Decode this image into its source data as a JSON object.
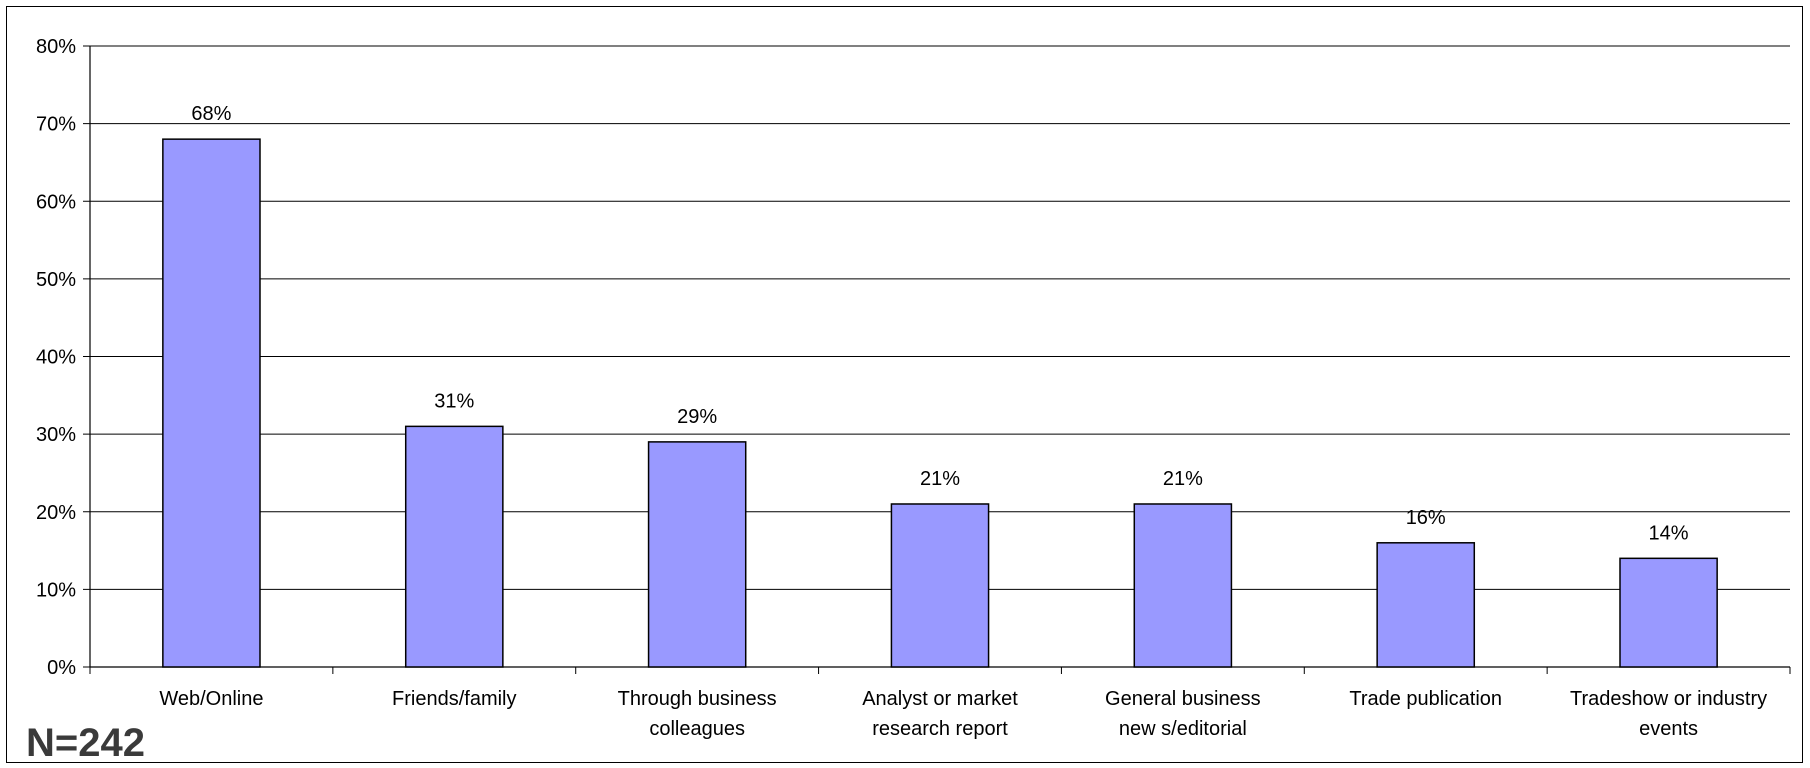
{
  "chart_data": {
    "type": "bar",
    "categories": [
      [
        "Web/Online"
      ],
      [
        "Friends/family"
      ],
      [
        "Through business",
        "colleagues"
      ],
      [
        "Analyst or market",
        "research report"
      ],
      [
        "General business",
        "new s/editorial"
      ],
      [
        "Trade publication"
      ],
      [
        "Tradeshow  or industry",
        "events"
      ]
    ],
    "values": [
      68,
      31,
      29,
      21,
      21,
      16,
      14
    ],
    "value_labels": [
      "68%",
      "31%",
      "29%",
      "21%",
      "21%",
      "16%",
      "14%"
    ],
    "y_ticks": [
      "0%",
      "10%",
      "20%",
      "30%",
      "40%",
      "50%",
      "60%",
      "70%",
      "80%"
    ],
    "ylim": [
      0,
      80
    ],
    "y_tick_values": [
      0,
      10,
      20,
      30,
      40,
      50,
      60,
      70,
      80
    ],
    "grid": true,
    "bar_color": "#9999ff",
    "bar_stroke": "#000000",
    "title": "",
    "xlabel": "",
    "ylabel": "",
    "note": "N=242"
  }
}
